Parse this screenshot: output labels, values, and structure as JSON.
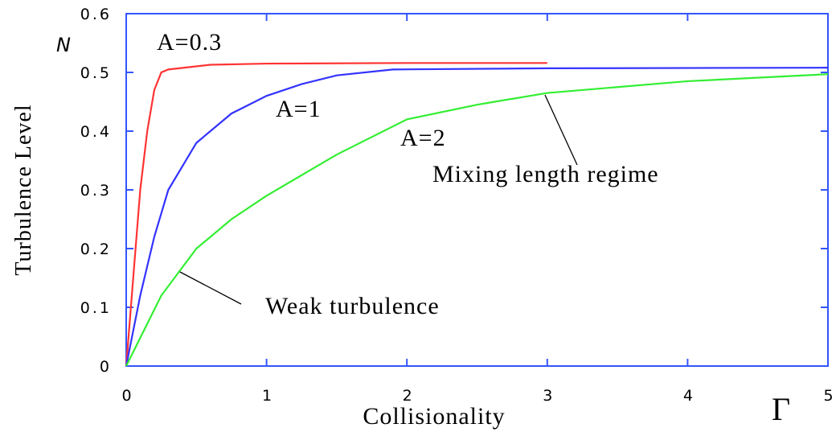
{
  "chart_data": {
    "type": "line",
    "x_label": "Collisionality",
    "y_label": "Turbulence Level",
    "x_symbol": "Γ",
    "y_symbol": "N",
    "annotations": [
      "A=0.3",
      "A=1",
      "A=2",
      "Mixing length regime",
      "Weak turbulence"
    ],
    "series": [
      {
        "name": "A=0.3",
        "color": "#ff3333",
        "x": [
          0,
          0.05,
          0.1,
          0.15,
          0.2,
          0.25,
          0.3,
          0.6,
          1,
          2,
          3
        ],
        "values": [
          0,
          0.15,
          0.3,
          0.4,
          0.47,
          0.5,
          0.505,
          0.513,
          0.515,
          0.516,
          0.516
        ]
      },
      {
        "name": "A=1",
        "color": "#3333ff",
        "x": [
          0,
          0.1,
          0.2,
          0.3,
          0.5,
          0.75,
          1,
          1.25,
          1.5,
          1.9,
          3,
          5
        ],
        "values": [
          0,
          0.12,
          0.22,
          0.3,
          0.38,
          0.43,
          0.46,
          0.48,
          0.495,
          0.505,
          0.507,
          0.508
        ]
      },
      {
        "name": "A=2",
        "color": "#33ee33",
        "x": [
          0,
          0.25,
          0.5,
          0.75,
          1,
          1.5,
          2,
          2.5,
          3,
          4,
          5
        ],
        "values": [
          0,
          0.12,
          0.2,
          0.25,
          0.29,
          0.36,
          0.42,
          0.445,
          0.465,
          0.485,
          0.497
        ]
      }
    ],
    "xlim": [
      0,
      5
    ],
    "xticks": [
      0,
      1,
      2,
      3,
      4,
      5
    ],
    "ylim": [
      0,
      0.6
    ],
    "yticks": [
      0,
      0.1,
      0.2,
      0.3,
      0.4,
      0.5,
      0.6
    ],
    "axis_color": "#3355ff"
  }
}
